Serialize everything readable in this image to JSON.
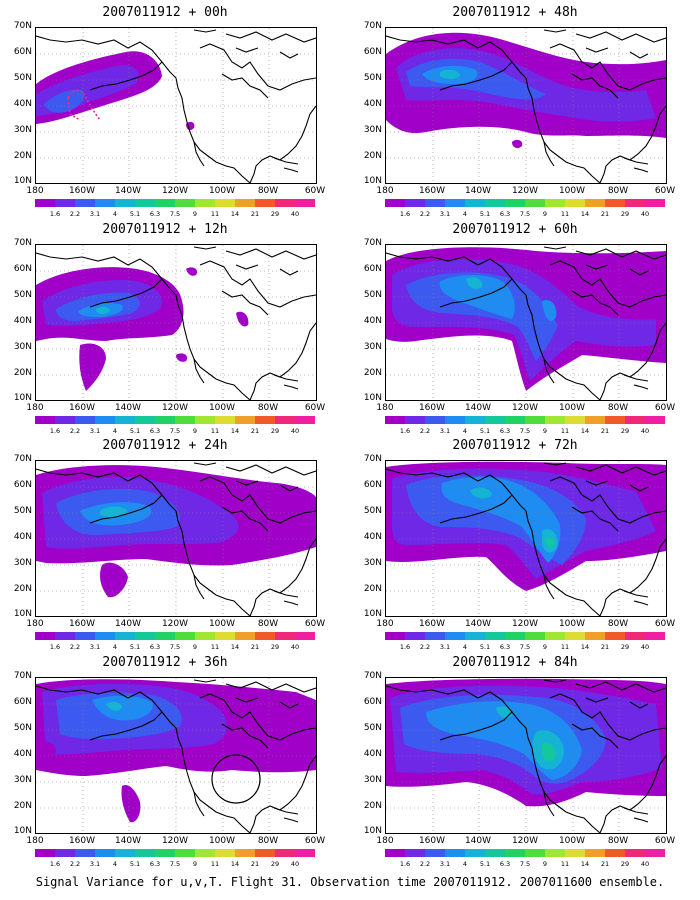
{
  "panels": [
    {
      "title": "2007011912 + 00h"
    },
    {
      "title": "2007011912 + 48h"
    },
    {
      "title": "2007011912 + 12h"
    },
    {
      "title": "2007011912 + 60h"
    },
    {
      "title": "2007011912 + 24h"
    },
    {
      "title": "2007011912 + 72h"
    },
    {
      "title": "2007011912 + 36h"
    },
    {
      "title": "2007011912 + 84h"
    }
  ],
  "lat_labels": [
    "70N",
    "60N",
    "50N",
    "40N",
    "30N",
    "20N",
    "10N"
  ],
  "lon_labels": [
    "180",
    "160W",
    "140W",
    "120W",
    "100W",
    "80W",
    "60W"
  ],
  "colorbar": {
    "labels": [
      "1.6",
      "2.2",
      "3.1",
      "4",
      "5.1",
      "6.3",
      "7.5",
      "9",
      "11",
      "14",
      "21",
      "29",
      "40"
    ],
    "colors": [
      "#a000c8",
      "#6e28e6",
      "#3c5af0",
      "#1e8cf0",
      "#14b4d2",
      "#14c89b",
      "#1ed264",
      "#50dc3c",
      "#a0e632",
      "#dcdc32",
      "#f0a028",
      "#f05a28",
      "#f02878",
      "#f01ea0"
    ]
  },
  "caption": "Signal Variance for u,v,T. Flight 31. Observation time 2007011912. 2007011600 ensemble."
}
